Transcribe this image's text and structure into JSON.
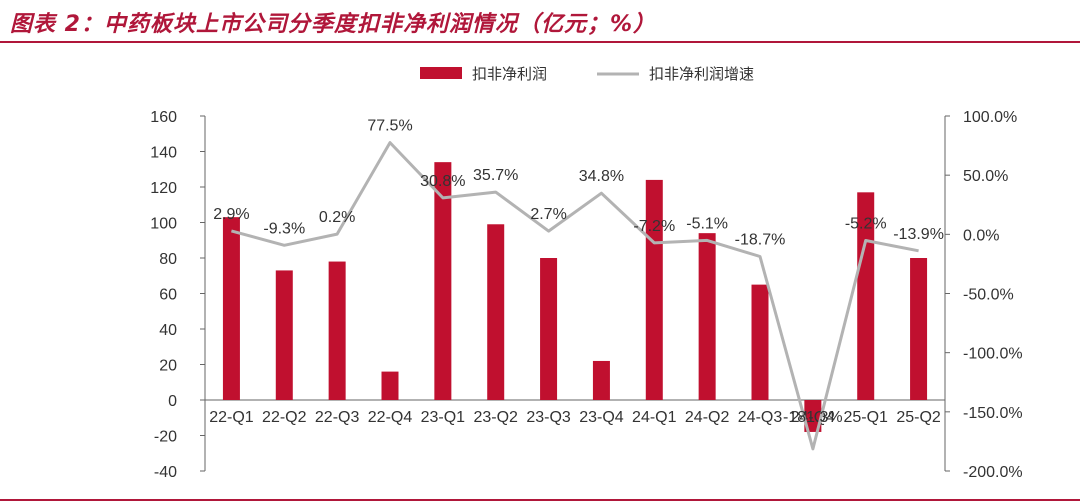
{
  "title": "图表 2：中药板块上市公司分季度扣非净利润情况（亿元；%）",
  "colors": {
    "bar": "#c0102f",
    "line": "#b3b3b3",
    "title": "#b0173a",
    "text": "#333333",
    "axis": "#666666"
  },
  "chart_data": {
    "type": "bar+line",
    "categories": [
      "22-Q1",
      "22-Q2",
      "22-Q3",
      "22-Q4",
      "23-Q1",
      "23-Q2",
      "23-Q3",
      "23-Q4",
      "24-Q1",
      "24-Q2",
      "24-Q3",
      "24-Q4",
      "25-Q1",
      "25-Q2"
    ],
    "series": [
      {
        "name": "扣非净利润",
        "type": "bar",
        "axis": "left",
        "values": [
          103,
          73,
          78,
          16,
          134,
          99,
          80,
          22,
          124,
          94,
          65,
          -18,
          117,
          80
        ]
      },
      {
        "name": "扣非净利润增速",
        "type": "line",
        "axis": "right",
        "values": [
          2.9,
          -9.3,
          0.2,
          77.5,
          30.8,
          35.7,
          2.7,
          34.8,
          -7.2,
          -5.1,
          -18.7,
          -181.3,
          -5.2,
          -13.9
        ],
        "labels": [
          "2.9%",
          "-9.3%",
          "0.2%",
          "77.5%",
          "30.8%",
          "35.7%",
          "2.7%",
          "34.8%",
          "-7.2%",
          "-5.1%",
          "-18.7%",
          "-181.3%",
          "-5.2%",
          "-13.9%"
        ]
      }
    ],
    "y_left": {
      "lim": [
        -40,
        160
      ],
      "ticks": [
        -40,
        -20,
        0,
        20,
        40,
        60,
        80,
        100,
        120,
        140,
        160
      ]
    },
    "y_right": {
      "lim": [
        -200,
        100
      ],
      "ticks": [
        "-200.0%",
        "-150.0%",
        "-100.0%",
        "-50.0%",
        "0.0%",
        "50.0%",
        "100.0%"
      ],
      "tick_values": [
        -200,
        -150,
        -100,
        -50,
        0,
        50,
        100
      ]
    },
    "legend_position": "top-center",
    "grid": false
  }
}
